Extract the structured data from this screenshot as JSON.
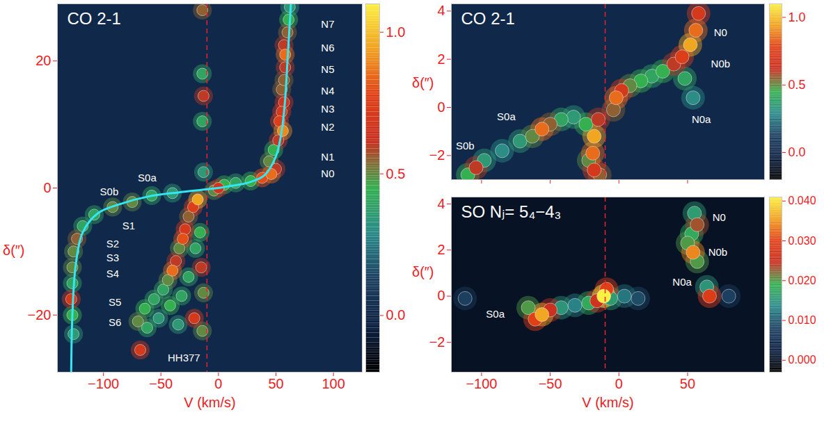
{
  "chart_data": [
    {
      "type": "heatmap",
      "title": "CO 2-1",
      "xlabel": "V (km/s)",
      "ylabel": "δ(″)",
      "xlim": [
        -140,
        125
      ],
      "xticks": [
        -100,
        -50,
        0,
        50,
        100
      ],
      "ylim": [
        -29,
        29
      ],
      "yticks": [
        -20,
        0,
        20
      ],
      "tick_labels": true,
      "background": 0,
      "colorbar": {
        "lim": [
          -0.2,
          1.1
        ],
        "ticks": [
          0,
          0.5,
          1
        ]
      },
      "cells": {
        "x": [
          0,
          -4,
          5,
          15,
          28,
          38,
          46,
          50,
          44,
          48,
          52,
          56,
          53,
          55,
          57,
          55,
          57,
          58,
          58,
          57,
          60,
          61,
          62,
          -18,
          -22,
          -26,
          -29,
          -31,
          -34,
          -37,
          -40,
          -44,
          -48,
          -56,
          -64,
          -70,
          -62,
          -68,
          -52,
          -42,
          -32,
          -26,
          -21,
          -15,
          -13,
          -14,
          -16,
          -20,
          -35,
          -40,
          -58,
          -75,
          -92,
          -108,
          -118,
          -123,
          -126,
          -127,
          -127,
          -128,
          -127,
          -126,
          -14,
          -13,
          -14,
          -14,
          -13
        ],
        "y": [
          0,
          -0.4,
          0.5,
          0.8,
          1.1,
          1.6,
          2.2,
          3,
          4.2,
          6,
          7.5,
          9,
          10.5,
          12,
          13.5,
          15.5,
          17,
          19,
          21,
          22.5,
          24.5,
          26.5,
          28.5,
          -1.8,
          -3,
          -4.5,
          -6.5,
          -8,
          -9.5,
          -11.5,
          -13,
          -14.5,
          -16,
          -17.5,
          -19,
          -21,
          -22,
          -25.5,
          -20.5,
          -18.5,
          -17,
          -14,
          -20.5,
          -12.5,
          -16.5,
          -22.5,
          -7,
          -9.5,
          -21.5,
          -0.8,
          -1.2,
          -2.2,
          -3,
          -4.2,
          -6,
          -8,
          -10,
          -12.5,
          -15,
          -17.5,
          -20,
          -23,
          10.5,
          14.5,
          18,
          28,
          2.5
        ],
        "values": [
          0.65,
          0.5,
          0.45,
          0.4,
          0.45,
          0.8,
          0.85,
          0.6,
          0.5,
          0.45,
          0.6,
          0.9,
          0.75,
          0.7,
          0.65,
          0.55,
          0.55,
          0.6,
          0.85,
          0.6,
          0.55,
          0.45,
          0.35,
          0.95,
          0.75,
          0.55,
          0.7,
          0.8,
          0.5,
          0.6,
          0.85,
          0.5,
          0.4,
          0.4,
          0.45,
          0.5,
          0.4,
          0.7,
          0.35,
          0.45,
          0.4,
          0.4,
          0.7,
          0.6,
          0.5,
          0.5,
          0.45,
          0.4,
          0.35,
          0.35,
          0.4,
          0.5,
          0.5,
          0.4,
          0.4,
          0.55,
          0.5,
          0.5,
          0.4,
          0.7,
          0.45,
          0.35,
          0.4,
          0.6,
          0.4,
          0.55,
          0.35
        ]
      },
      "curve": {
        "color": "#33e6f2",
        "x": [
          -128,
          -127,
          -124,
          -118,
          -105,
          -85,
          -60,
          -35,
          -15,
          0,
          10,
          25,
          40,
          50,
          55,
          58,
          60,
          62,
          63
        ],
        "y": [
          -29,
          -20,
          -12,
          -7,
          -4,
          -2.5,
          -1.3,
          -0.7,
          -0.3,
          0,
          0.3,
          0.8,
          2,
          5,
          9,
          14,
          20,
          26,
          29
        ]
      },
      "vline": {
        "x": -10,
        "color": "#e8242a",
        "line_style": "dashed"
      },
      "annotations": [
        {
          "text": "N7",
          "x": 95,
          "y": 25.8
        },
        {
          "text": "N6",
          "x": 95,
          "y": 22
        },
        {
          "text": "N5",
          "x": 95,
          "y": 18.6
        },
        {
          "text": "N4",
          "x": 95,
          "y": 15.2
        },
        {
          "text": "N3",
          "x": 95,
          "y": 12.4
        },
        {
          "text": "N2",
          "x": 95,
          "y": 9.6
        },
        {
          "text": "N1",
          "x": 95,
          "y": 4.8
        },
        {
          "text": "N0",
          "x": 95,
          "y": 2.2
        },
        {
          "text": "S0a",
          "x": -62,
          "y": 1.6
        },
        {
          "text": "S0b",
          "x": -95,
          "y": -0.6
        },
        {
          "text": "S1",
          "x": -78,
          "y": -6
        },
        {
          "text": "S2",
          "x": -92,
          "y": -8.8
        },
        {
          "text": "S3",
          "x": -92,
          "y": -11
        },
        {
          "text": "S4",
          "x": -92,
          "y": -13.5
        },
        {
          "text": "S5",
          "x": -90,
          "y": -18
        },
        {
          "text": "S6",
          "x": -90,
          "y": -21.2
        },
        {
          "text": "HH377",
          "x": -30,
          "y": -26.8
        }
      ]
    },
    {
      "type": "heatmap",
      "title": "CO 2-1",
      "ylabel": "δ(″)",
      "xlim": [
        -122,
        106
      ],
      "xticks": [
        -100,
        -50,
        0,
        50
      ],
      "ylim": [
        -3,
        4.3
      ],
      "yticks": [
        -2,
        0,
        2,
        4
      ],
      "tick_labels": "y",
      "background": 0,
      "colorbar": {
        "lim": [
          -0.2,
          1.1
        ],
        "ticks": [
          0,
          0.5,
          1
        ]
      },
      "cells": {
        "x": [
          -2,
          2,
          -4,
          8,
          16,
          24,
          32,
          40,
          46,
          52,
          56,
          58,
          48,
          54,
          -18,
          -19,
          -18,
          -15,
          -24,
          -22,
          -14,
          -56,
          -50,
          -63,
          -42,
          -33,
          -72,
          -85,
          -98,
          -104,
          -110
        ],
        "y": [
          0.4,
          0.7,
          -0.1,
          0.9,
          1.1,
          1.3,
          1.5,
          1.8,
          2.1,
          2.6,
          3.2,
          3.9,
          1.2,
          0.4,
          -1.2,
          -1.9,
          -2.6,
          -0.5,
          -0.7,
          -2.2,
          -2.8,
          -0.9,
          -0.7,
          -1.2,
          -0.5,
          -0.4,
          -1.4,
          -1.8,
          -2.2,
          -2.5,
          -2.8
        ],
        "values": [
          0.85,
          0.7,
          0.55,
          0.5,
          0.45,
          0.4,
          0.45,
          0.6,
          0.75,
          0.95,
          0.85,
          0.7,
          0.4,
          0.3,
          0.95,
          0.85,
          0.7,
          0.6,
          0.45,
          0.5,
          0.55,
          0.85,
          0.55,
          0.5,
          0.4,
          0.35,
          0.35,
          0.3,
          0.35,
          0.6,
          0.45
        ]
      },
      "vline": {
        "x": -10,
        "color": "#e8242a",
        "line_style": "dashed"
      },
      "annotations": [
        {
          "text": "N0",
          "x": 74,
          "y": 3.1
        },
        {
          "text": "N0b",
          "x": 74,
          "y": 1.8
        },
        {
          "text": "N0a",
          "x": 60,
          "y": -0.5
        },
        {
          "text": "S0a",
          "x": -82,
          "y": -0.4
        },
        {
          "text": "S0b",
          "x": -112,
          "y": -1.6
        }
      ]
    },
    {
      "type": "heatmap",
      "title": "SO Nⱼ= 5₄−4₃",
      "xlabel": "V (km/s)",
      "ylabel": "δ(″)",
      "xlim": [
        -122,
        106
      ],
      "xticks": [
        -100,
        -50,
        0,
        50
      ],
      "ylim": [
        -3.3,
        4.3
      ],
      "yticks": [
        -2,
        0,
        2,
        4
      ],
      "tick_labels": true,
      "background": 0,
      "colorbar": {
        "lim": [
          -0.003,
          0.041
        ],
        "ticks": [
          0,
          0.01,
          0.02,
          0.03,
          0.04
        ]
      },
      "cells": {
        "x": [
          -56,
          -61,
          -50,
          -66,
          -42,
          -32,
          -22,
          -16,
          -11,
          -9,
          -6,
          4,
          14,
          -112,
          54,
          50,
          57,
          57,
          55,
          53,
          66,
          64,
          80
        ],
        "y": [
          -0.8,
          -1,
          -0.6,
          -0.5,
          -0.5,
          -0.4,
          -0.3,
          -0.2,
          0,
          0.3,
          -0.1,
          0,
          -0.1,
          -0.1,
          1.9,
          2.3,
          1.5,
          3.1,
          3.6,
          2.7,
          0,
          0.4,
          0
        ],
        "values": [
          0.036,
          0.03,
          0.025,
          0.02,
          0.015,
          0.013,
          0.018,
          0.026,
          0.042,
          0.03,
          0.016,
          0.012,
          0.009,
          0.008,
          0.034,
          0.02,
          0.02,
          0.023,
          0.016,
          0.018,
          0.029,
          0.015,
          0.008
        ]
      },
      "vline": {
        "x": -10,
        "color": "#e8242a",
        "line_style": "dashed"
      },
      "annotations": [
        {
          "text": "N0",
          "x": 73,
          "y": 3.4
        },
        {
          "text": "N0b",
          "x": 72,
          "y": 1.9
        },
        {
          "text": "N0a",
          "x": 46,
          "y": 0.6
        },
        {
          "text": "S0a",
          "x": -90,
          "y": -0.8
        }
      ]
    }
  ]
}
